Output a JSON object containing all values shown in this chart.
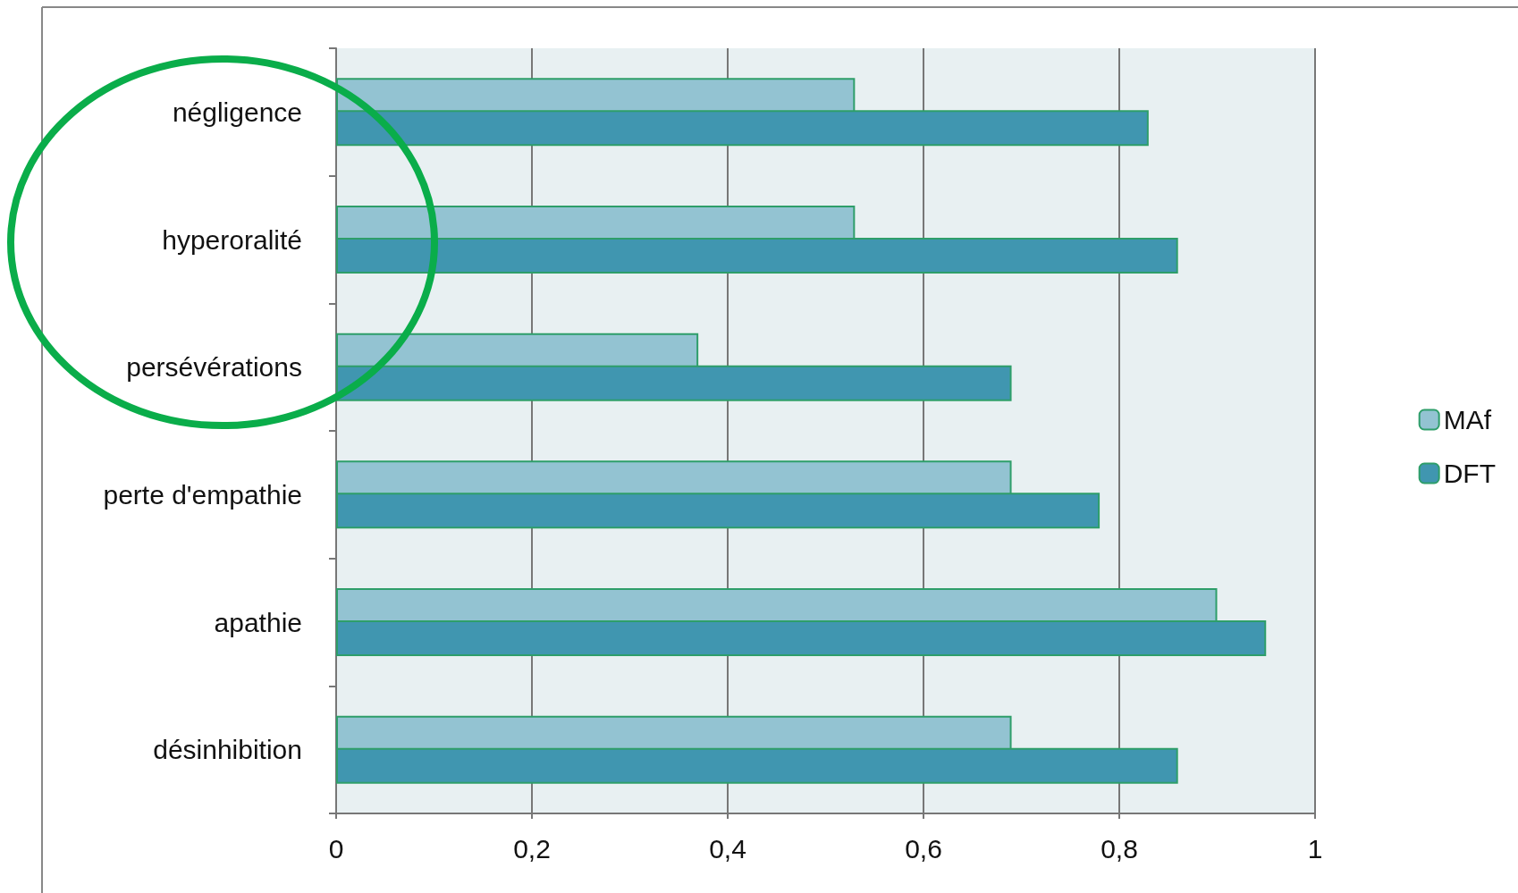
{
  "chart_data": {
    "type": "bar",
    "orientation": "horizontal",
    "categories": [
      "négligence",
      "hyperoralité",
      "persévérations",
      "perte d'empathie",
      "apathie",
      "désinhibition"
    ],
    "series": [
      {
        "name": "MAf",
        "color": "#93c3d2",
        "values": [
          0.53,
          0.53,
          0.37,
          0.69,
          0.9,
          0.69
        ]
      },
      {
        "name": "DFT",
        "color": "#4096b0",
        "values": [
          0.83,
          0.86,
          0.69,
          0.78,
          0.95,
          0.86
        ]
      }
    ],
    "xlim": [
      0,
      1
    ],
    "xticks": [
      {
        "value": 0,
        "label": "0"
      },
      {
        "value": 0.2,
        "label": "0,2"
      },
      {
        "value": 0.4,
        "label": "0,4"
      },
      {
        "value": 0.6,
        "label": "0,6"
      },
      {
        "value": 0.8,
        "label": "0,8"
      },
      {
        "value": 1,
        "label": "1"
      }
    ],
    "grid": "x",
    "legend": "right"
  }
}
